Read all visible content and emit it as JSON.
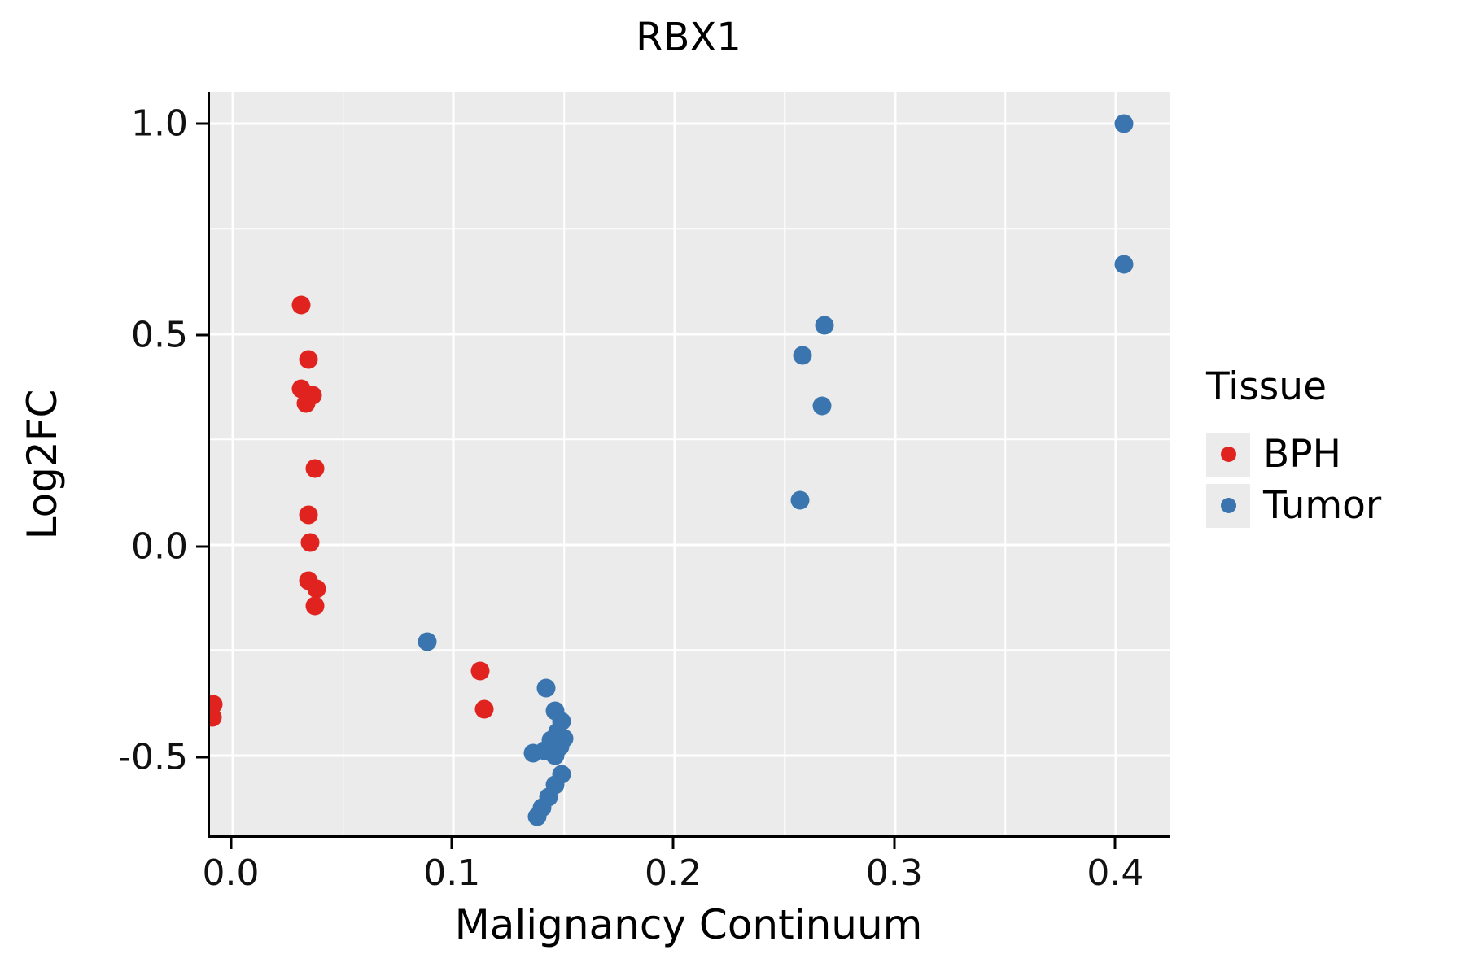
{
  "chart_data": {
    "type": "scatter",
    "title": "RBX1",
    "xlabel": "Malignancy Continuum",
    "ylabel": "Log2FC",
    "xlim": [
      -0.0105,
      0.4245
    ],
    "ylim": [
      -0.69,
      1.075
    ],
    "x_ticks": [
      0.0,
      0.1,
      0.2,
      0.3,
      0.4
    ],
    "x_tick_labels": [
      "0.0",
      "0.1",
      "0.2",
      "0.3",
      "0.4"
    ],
    "x_minor_ticks": [
      0.05,
      0.15,
      0.25,
      0.35
    ],
    "y_ticks": [
      -0.5,
      0.0,
      0.5,
      1.0
    ],
    "y_tick_labels": [
      "-0.5",
      "0.0",
      "0.5",
      "1.0"
    ],
    "y_minor_ticks": [
      -0.25,
      0.25,
      0.75
    ],
    "grid": true,
    "panel_bg": "#EBEBEB",
    "grid_color": "#FFFFFF",
    "legend": {
      "title": "Tissue",
      "position": "right"
    },
    "series": [
      {
        "name": "BPH",
        "color": "#E0231F",
        "points": [
          [
            -0.009,
            -0.38
          ],
          [
            -0.0095,
            -0.41
          ],
          [
            0.031,
            0.57
          ],
          [
            0.034,
            0.44
          ],
          [
            0.031,
            0.37
          ],
          [
            0.036,
            0.355
          ],
          [
            0.033,
            0.335
          ],
          [
            0.037,
            0.18
          ],
          [
            0.034,
            0.07
          ],
          [
            0.035,
            0.005
          ],
          [
            0.034,
            -0.085
          ],
          [
            0.038,
            -0.105
          ],
          [
            0.037,
            -0.145
          ],
          [
            0.112,
            -0.3
          ],
          [
            0.114,
            -0.39
          ]
        ]
      },
      {
        "name": "Tumor",
        "color": "#3B75AF",
        "points": [
          [
            0.088,
            -0.23
          ],
          [
            0.142,
            -0.34
          ],
          [
            0.146,
            -0.395
          ],
          [
            0.149,
            -0.42
          ],
          [
            0.147,
            -0.445
          ],
          [
            0.15,
            -0.46
          ],
          [
            0.144,
            -0.465
          ],
          [
            0.148,
            -0.48
          ],
          [
            0.141,
            -0.49
          ],
          [
            0.136,
            -0.495
          ],
          [
            0.146,
            -0.5
          ],
          [
            0.149,
            -0.545
          ],
          [
            0.146,
            -0.57
          ],
          [
            0.143,
            -0.6
          ],
          [
            0.14,
            -0.625
          ],
          [
            0.138,
            -0.645
          ],
          [
            0.258,
            0.45
          ],
          [
            0.268,
            0.52
          ],
          [
            0.267,
            0.33
          ],
          [
            0.257,
            0.105
          ],
          [
            0.404,
            1.0
          ],
          [
            0.404,
            0.665
          ]
        ]
      }
    ]
  }
}
